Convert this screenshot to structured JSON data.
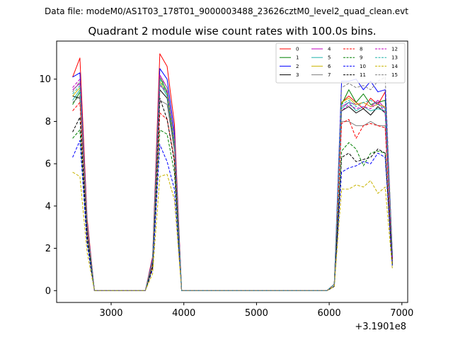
{
  "suptitle": "Data file: modeM0/AS1T03_178T01_9000003488_23626cztM0_level2_quad_clean.evt",
  "chart_data": {
    "type": "line",
    "title": "Quadrant 2 module wise count rates with 100.0s bins.",
    "xlabel": "",
    "ylabel": "",
    "x_offset_label": "+3.1901e8",
    "xlim": [
      2250,
      7080
    ],
    "ylim": [
      -0.56,
      11.8
    ],
    "xticks": [
      3000,
      4000,
      5000,
      6000,
      7000
    ],
    "xtick_labels": [
      "3000",
      "4000",
      "5000",
      "6000",
      "7000"
    ],
    "yticks": [
      0,
      2,
      4,
      6,
      8,
      10
    ],
    "ytick_labels": [
      "0",
      "2",
      "4",
      "6",
      "8",
      "10"
    ],
    "grid": false,
    "legend_position": "top-right",
    "x": [
      2470,
      2570,
      2670,
      2770,
      2870,
      2970,
      3070,
      3170,
      3270,
      3370,
      3470,
      3570,
      3670,
      3770,
      3870,
      3970,
      4070,
      4170,
      4270,
      4370,
      4470,
      4570,
      4670,
      4770,
      4870,
      4970,
      5070,
      5170,
      5270,
      5370,
      5470,
      5570,
      5670,
      5770,
      5870,
      5970,
      6070,
      6170,
      6270,
      6370,
      6470,
      6570,
      6670,
      6770,
      6870
    ],
    "series": [
      {
        "name": "0",
        "color": "#ff0000",
        "dash": "solid",
        "values": [
          10.1,
          11.0,
          3.4,
          0,
          0,
          0,
          0,
          0,
          0,
          0,
          0,
          1.6,
          11.2,
          10.6,
          7.9,
          0,
          0,
          0,
          0,
          0,
          0,
          0,
          0,
          0,
          0,
          0,
          0,
          0,
          0,
          0,
          0,
          0,
          0,
          0,
          0,
          0,
          0.3,
          8.9,
          9.2,
          8.9,
          8.6,
          9.1,
          8.8,
          9.4,
          1.7
        ]
      },
      {
        "name": "1",
        "color": "#008000",
        "dash": "solid",
        "values": [
          8.8,
          9.4,
          3.0,
          0,
          0,
          0,
          0,
          0,
          0,
          0,
          0,
          1.4,
          10.1,
          9.4,
          7.0,
          0,
          0,
          0,
          0,
          0,
          0,
          0,
          0,
          0,
          0,
          0,
          0,
          0,
          0,
          0,
          0,
          0,
          0,
          0,
          0,
          0,
          0.3,
          8.8,
          9.5,
          8.9,
          9.3,
          8.8,
          8.9,
          9.0,
          1.6
        ]
      },
      {
        "name": "2",
        "color": "#0000ff",
        "dash": "solid",
        "values": [
          10.1,
          10.3,
          3.2,
          0,
          0,
          0,
          0,
          0,
          0,
          0,
          0,
          1.5,
          10.5,
          10.0,
          7.5,
          0,
          0,
          0,
          0,
          0,
          0,
          0,
          0,
          0,
          0,
          0,
          0,
          0,
          0,
          0,
          0,
          0,
          0,
          0,
          0,
          0,
          0.3,
          9.9,
          9.9,
          10.0,
          9.5,
          9.9,
          9.4,
          9.5,
          1.7
        ]
      },
      {
        "name": "3",
        "color": "#000000",
        "dash": "solid",
        "values": [
          9.2,
          9.1,
          2.9,
          0,
          0,
          0,
          0,
          0,
          0,
          0,
          0,
          1.3,
          9.5,
          9.1,
          6.8,
          0,
          0,
          0,
          0,
          0,
          0,
          0,
          0,
          0,
          0,
          0,
          0,
          0,
          0,
          0,
          0,
          0,
          0,
          0,
          0,
          0,
          0.3,
          8.5,
          8.7,
          8.4,
          8.6,
          8.3,
          8.7,
          8.4,
          1.5
        ]
      },
      {
        "name": "4",
        "color": "#c000c0",
        "dash": "solid",
        "values": [
          9.5,
          9.8,
          3.1,
          0,
          0,
          0,
          0,
          0,
          0,
          0,
          0,
          1.4,
          10.2,
          9.6,
          7.2,
          0,
          0,
          0,
          0,
          0,
          0,
          0,
          0,
          0,
          0,
          0,
          0,
          0,
          0,
          0,
          0,
          0,
          0,
          0,
          0,
          0,
          0.3,
          8.7,
          8.9,
          8.8,
          8.9,
          8.7,
          9.0,
          8.6,
          1.6
        ]
      },
      {
        "name": "5",
        "color": "#20b2aa",
        "dash": "solid",
        "values": [
          9.0,
          9.5,
          3.0,
          0,
          0,
          0,
          0,
          0,
          0,
          0,
          0,
          1.4,
          9.8,
          9.2,
          6.9,
          0,
          0,
          0,
          0,
          0,
          0,
          0,
          0,
          0,
          0,
          0,
          0,
          0,
          0,
          0,
          0,
          0,
          0,
          0,
          0,
          0,
          0.3,
          8.6,
          8.9,
          8.5,
          8.7,
          8.5,
          8.6,
          8.5,
          1.5
        ]
      },
      {
        "name": "6",
        "color": "#c8b400",
        "dash": "solid",
        "values": [
          9.2,
          9.6,
          3.0,
          0,
          0,
          0,
          0,
          0,
          0,
          0,
          0,
          1.4,
          9.9,
          9.3,
          7.0,
          0,
          0,
          0,
          0,
          0,
          0,
          0,
          0,
          0,
          0,
          0,
          0,
          0,
          0,
          0,
          0,
          0,
          0,
          0,
          0,
          0,
          0.3,
          8.9,
          9.1,
          8.8,
          8.9,
          8.7,
          8.8,
          8.7,
          1.6
        ]
      },
      {
        "name": "7",
        "color": "#808080",
        "dash": "solid",
        "values": [
          8.9,
          9.2,
          2.9,
          0,
          0,
          0,
          0,
          0,
          0,
          0,
          0,
          1.3,
          9.0,
          8.8,
          6.6,
          0,
          0,
          0,
          0,
          0,
          0,
          0,
          0,
          0,
          0,
          0,
          0,
          0,
          0,
          0,
          0,
          0,
          0,
          0,
          0,
          0,
          0.3,
          8.0,
          8.0,
          7.8,
          7.8,
          8.0,
          7.8,
          7.8,
          1.4
        ]
      },
      {
        "name": "8",
        "color": "#ff0000",
        "dash": "dashed",
        "values": [
          8.5,
          8.9,
          2.8,
          0,
          0,
          0,
          0,
          0,
          0,
          0,
          0,
          1.2,
          8.4,
          8.1,
          6.2,
          0,
          0,
          0,
          0,
          0,
          0,
          0,
          0,
          0,
          0,
          0,
          0,
          0,
          0,
          0,
          0,
          0,
          0,
          0,
          0,
          0,
          0.3,
          7.9,
          8.1,
          7.2,
          7.8,
          7.9,
          7.8,
          7.7,
          1.4
        ]
      },
      {
        "name": "9",
        "color": "#008000",
        "dash": "dashed",
        "values": [
          7.2,
          7.6,
          2.4,
          0,
          0,
          0,
          0,
          0,
          0,
          0,
          0,
          1.1,
          7.6,
          7.4,
          5.6,
          0,
          0,
          0,
          0,
          0,
          0,
          0,
          0,
          0,
          0,
          0,
          0,
          0,
          0,
          0,
          0,
          0,
          0,
          0,
          0,
          0,
          0.2,
          6.6,
          7.0,
          6.7,
          5.9,
          6.5,
          6.6,
          6.5,
          1.2
        ]
      },
      {
        "name": "10",
        "color": "#0000ff",
        "dash": "dashed",
        "values": [
          6.3,
          7.1,
          2.2,
          0,
          0,
          0,
          0,
          0,
          0,
          0,
          0,
          1.0,
          6.9,
          6.1,
          4.8,
          0,
          0,
          0,
          0,
          0,
          0,
          0,
          0,
          0,
          0,
          0,
          0,
          0,
          0,
          0,
          0,
          0,
          0,
          0,
          0,
          0,
          0.2,
          5.6,
          5.8,
          5.9,
          6.1,
          6.0,
          6.5,
          6.3,
          1.1
        ]
      },
      {
        "name": "11",
        "color": "#000000",
        "dash": "dashed",
        "values": [
          7.5,
          8.2,
          2.6,
          0,
          0,
          0,
          0,
          0,
          0,
          0,
          0,
          1.1,
          9.1,
          8.1,
          6.1,
          0,
          0,
          0,
          0,
          0,
          0,
          0,
          0,
          0,
          0,
          0,
          0,
          0,
          0,
          0,
          0,
          0,
          0,
          0,
          0,
          0,
          0.2,
          6.3,
          6.5,
          6.1,
          6.2,
          6.3,
          6.7,
          6.5,
          1.2
        ]
      },
      {
        "name": "12",
        "color": "#c000c0",
        "dash": "dashed",
        "values": [
          9.6,
          10.0,
          3.1,
          0,
          0,
          0,
          0,
          0,
          0,
          0,
          0,
          1.4,
          9.7,
          9.4,
          7.1,
          0,
          0,
          0,
          0,
          0,
          0,
          0,
          0,
          0,
          0,
          0,
          0,
          0,
          0,
          0,
          0,
          0,
          0,
          0,
          0,
          0,
          0.3,
          8.5,
          8.8,
          8.6,
          8.7,
          8.6,
          8.9,
          8.4,
          1.5
        ]
      },
      {
        "name": "13",
        "color": "#20b2aa",
        "dash": "dashed",
        "values": [
          9.3,
          9.7,
          3.1,
          0,
          0,
          0,
          0,
          0,
          0,
          0,
          0,
          1.4,
          10.0,
          9.3,
          7.0,
          0,
          0,
          0,
          0,
          0,
          0,
          0,
          0,
          0,
          0,
          0,
          0,
          0,
          0,
          0,
          0,
          0,
          0,
          0,
          0,
          0,
          0.3,
          8.8,
          9.0,
          8.7,
          8.9,
          9.0,
          8.8,
          8.6,
          1.6
        ]
      },
      {
        "name": "14",
        "color": "#c8b400",
        "dash": "dashed",
        "values": [
          5.6,
          5.4,
          1.8,
          0,
          0,
          0,
          0,
          0,
          0,
          0,
          0,
          0.8,
          5.4,
          5.5,
          4.3,
          0,
          0,
          0,
          0,
          0,
          0,
          0,
          0,
          0,
          0,
          0,
          0,
          0,
          0,
          0,
          0,
          0,
          0,
          0,
          0,
          0,
          0.2,
          4.8,
          4.8,
          5.0,
          4.9,
          5.2,
          4.6,
          4.9,
          1.0
        ]
      },
      {
        "name": "15",
        "color": "#808080",
        "dash": "dashed",
        "values": [
          9.4,
          9.9,
          3.1,
          0,
          0,
          0,
          0,
          0,
          0,
          0,
          0,
          1.4,
          10.1,
          9.6,
          7.2,
          0,
          0,
          0,
          0,
          0,
          0,
          0,
          0,
          0,
          0,
          0,
          0,
          0,
          0,
          0,
          0,
          0,
          0,
          0,
          0,
          0,
          0.3,
          9.6,
          9.8,
          9.6,
          9.7,
          9.5,
          9.9,
          10.1,
          1.7
        ]
      }
    ]
  }
}
